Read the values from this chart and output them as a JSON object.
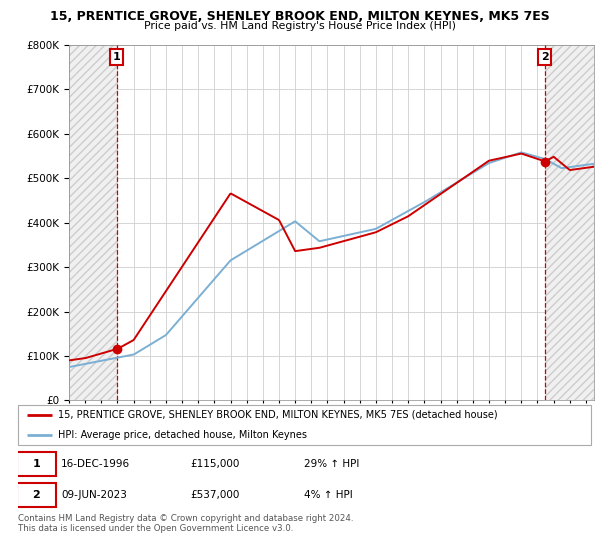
{
  "title": "15, PRENTICE GROVE, SHENLEY BROOK END, MILTON KEYNES, MK5 7ES",
  "subtitle": "Price paid vs. HM Land Registry's House Price Index (HPI)",
  "property_label": "15, PRENTICE GROVE, SHENLEY BROOK END, MILTON KEYNES, MK5 7ES (detached house)",
  "hpi_label": "HPI: Average price, detached house, Milton Keynes",
  "transaction1_date": "16-DEC-1996",
  "transaction1_price": 115000,
  "transaction1_hpi": "29% ↑ HPI",
  "transaction2_date": "09-JUN-2023",
  "transaction2_price": 537000,
  "transaction2_hpi": "4% ↑ HPI",
  "footer": "Contains HM Land Registry data © Crown copyright and database right 2024.\nThis data is licensed under the Open Government Licence v3.0.",
  "property_color": "#cc0000",
  "hpi_color": "#7bafd4",
  "hatch_color": "#cccccc",
  "ylim": [
    0,
    800000
  ],
  "yticks": [
    0,
    100000,
    200000,
    300000,
    400000,
    500000,
    600000,
    700000,
    800000
  ],
  "xlim_start": 1994.0,
  "xlim_end": 2026.5,
  "t1_x": 1996.96,
  "t2_x": 2023.44,
  "t1_y": 115000,
  "t2_y": 537000
}
